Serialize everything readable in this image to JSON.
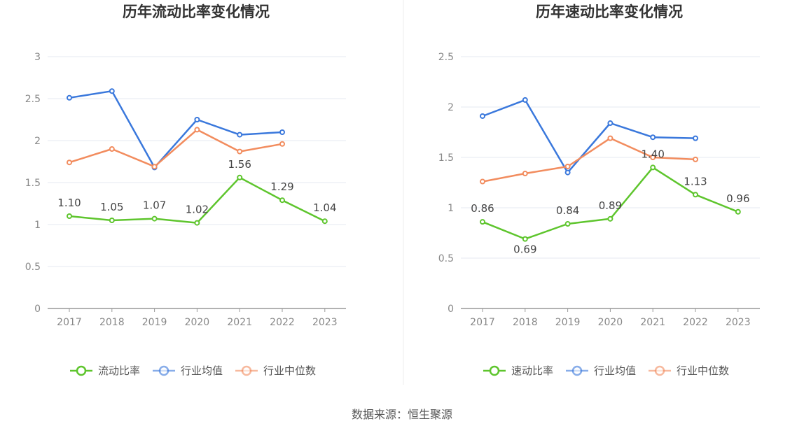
{
  "footer": {
    "source": "数据来源：恒生聚源"
  },
  "chart_data": [
    {
      "type": "line",
      "title": "历年流动比率变化情况",
      "categories": [
        "2017",
        "2018",
        "2019",
        "2020",
        "2021",
        "2022",
        "2023"
      ],
      "ylim": [
        0,
        3
      ],
      "yticks": [
        "0",
        "0.5",
        "1",
        "1.5",
        "2",
        "2.5",
        "3"
      ],
      "grid": true,
      "legend_position": "bottom",
      "series": [
        {
          "name": "流动比率",
          "color": "#5ec52d",
          "values": [
            1.1,
            1.05,
            1.07,
            1.02,
            1.56,
            1.29,
            1.04
          ],
          "labels": [
            "1.10",
            "1.05",
            "1.07",
            "1.02",
            "1.56",
            "1.29",
            "1.04"
          ]
        },
        {
          "name": "行业均值",
          "color": "#3a78dc",
          "values": [
            2.51,
            2.59,
            1.68,
            2.25,
            2.07,
            2.1,
            null
          ]
        },
        {
          "name": "行业中位数",
          "color": "#f28c5e",
          "values": [
            1.74,
            1.9,
            1.69,
            2.13,
            1.87,
            1.96,
            null
          ]
        }
      ]
    },
    {
      "type": "line",
      "title": "历年速动比率变化情况",
      "categories": [
        "2017",
        "2018",
        "2019",
        "2020",
        "2021",
        "2022",
        "2023"
      ],
      "ylim": [
        0,
        2.5
      ],
      "yticks": [
        "0",
        "0.5",
        "1",
        "1.5",
        "2",
        "2.5"
      ],
      "grid": true,
      "legend_position": "bottom",
      "series": [
        {
          "name": "速动比率",
          "color": "#5ec52d",
          "values": [
            0.86,
            0.69,
            0.84,
            0.89,
            1.4,
            1.13,
            0.96
          ],
          "labels": [
            "0.86",
            "0.69",
            "0.84",
            "0.89",
            "1.40",
            "1.13",
            "0.96"
          ]
        },
        {
          "name": "行业均值",
          "color": "#3a78dc",
          "values": [
            1.91,
            2.07,
            1.35,
            1.84,
            1.7,
            1.69,
            null
          ]
        },
        {
          "name": "行业中位数",
          "color": "#f28c5e",
          "values": [
            1.26,
            1.34,
            1.41,
            1.69,
            1.5,
            1.48,
            null
          ]
        }
      ]
    }
  ]
}
